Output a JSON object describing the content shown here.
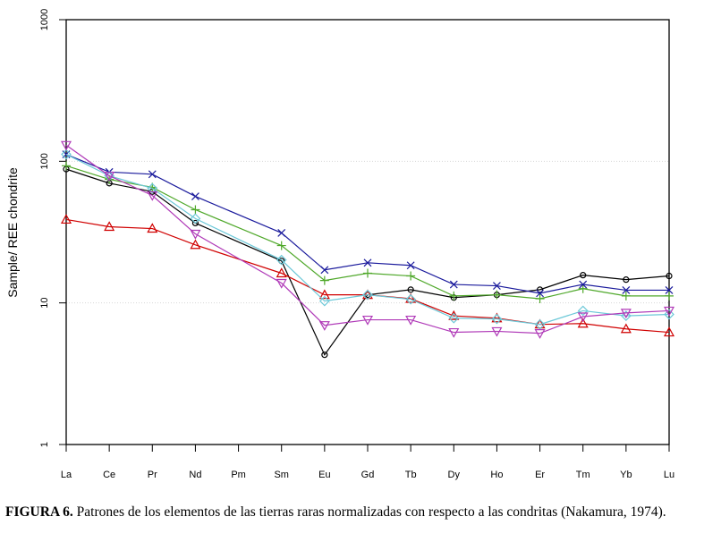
{
  "chart_data": {
    "type": "line",
    "title": "",
    "xlabel": "",
    "ylabel": "Sample/ REE chondrite",
    "yscale": "log",
    "ylim": [
      1,
      1000
    ],
    "yticks": [
      1,
      10,
      100,
      1000
    ],
    "ytick_labels": [
      "1",
      "10",
      "100",
      "1000"
    ],
    "grid_lines_at": [
      10,
      100
    ],
    "categories": [
      "La",
      "Ce",
      "Pr",
      "Nd",
      "Pm",
      "Sm",
      "Eu",
      "Gd",
      "Tb",
      "Dy",
      "Ho",
      "Er",
      "Tm",
      "Yb",
      "Lu"
    ],
    "legend": "none",
    "series": [
      {
        "name": "black-circles",
        "color": "#000000",
        "marker": "circle",
        "values": [
          88,
          70,
          61,
          36.6,
          null,
          19.8,
          4.3,
          11.4,
          12.4,
          10.9,
          11.4,
          12.4,
          15.7,
          14.6,
          15.5
        ]
      },
      {
        "name": "red-triangles",
        "color": "#d00000",
        "marker": "triangle-up",
        "values": [
          38.8,
          34.5,
          33.5,
          25.7,
          null,
          16.2,
          11.4,
          11.4,
          10.7,
          8.1,
          7.8,
          7.05,
          7.15,
          6.55,
          6.2
        ]
      },
      {
        "name": "green-plus",
        "color": "#4fa82a",
        "marker": "plus",
        "values": [
          93,
          74.5,
          65.5,
          45.5,
          null,
          25.4,
          14.4,
          16.2,
          15.5,
          11.2,
          11.4,
          10.7,
          12.6,
          11.2,
          11.2
        ]
      },
      {
        "name": "blue-cross",
        "color": "#1a1a9c",
        "marker": "cross",
        "values": [
          112,
          84,
          81,
          56.5,
          null,
          31.2,
          17.1,
          19.2,
          18.4,
          13.5,
          13.2,
          11.7,
          13.5,
          12.3,
          12.3
        ]
      },
      {
        "name": "cyan-diamonds",
        "color": "#6cc8d8",
        "marker": "diamond",
        "values": [
          112,
          79,
          64.5,
          39.4,
          null,
          20.1,
          10.3,
          11.4,
          10.6,
          7.8,
          7.7,
          7.05,
          8.8,
          8.1,
          8.3
        ]
      },
      {
        "name": "magenta-triangles",
        "color": "#b03ab8",
        "marker": "triangle-down",
        "values": [
          130,
          79,
          57.4,
          30.7,
          null,
          13.8,
          6.95,
          7.6,
          7.6,
          6.2,
          6.3,
          6.1,
          8.0,
          8.5,
          8.8
        ]
      }
    ]
  },
  "caption": {
    "label": "FIGURA 6.",
    "text": " Patrones de los elementos de las tierras raras normalizadas con respecto a las condritas (Nakamura, 1974)."
  }
}
